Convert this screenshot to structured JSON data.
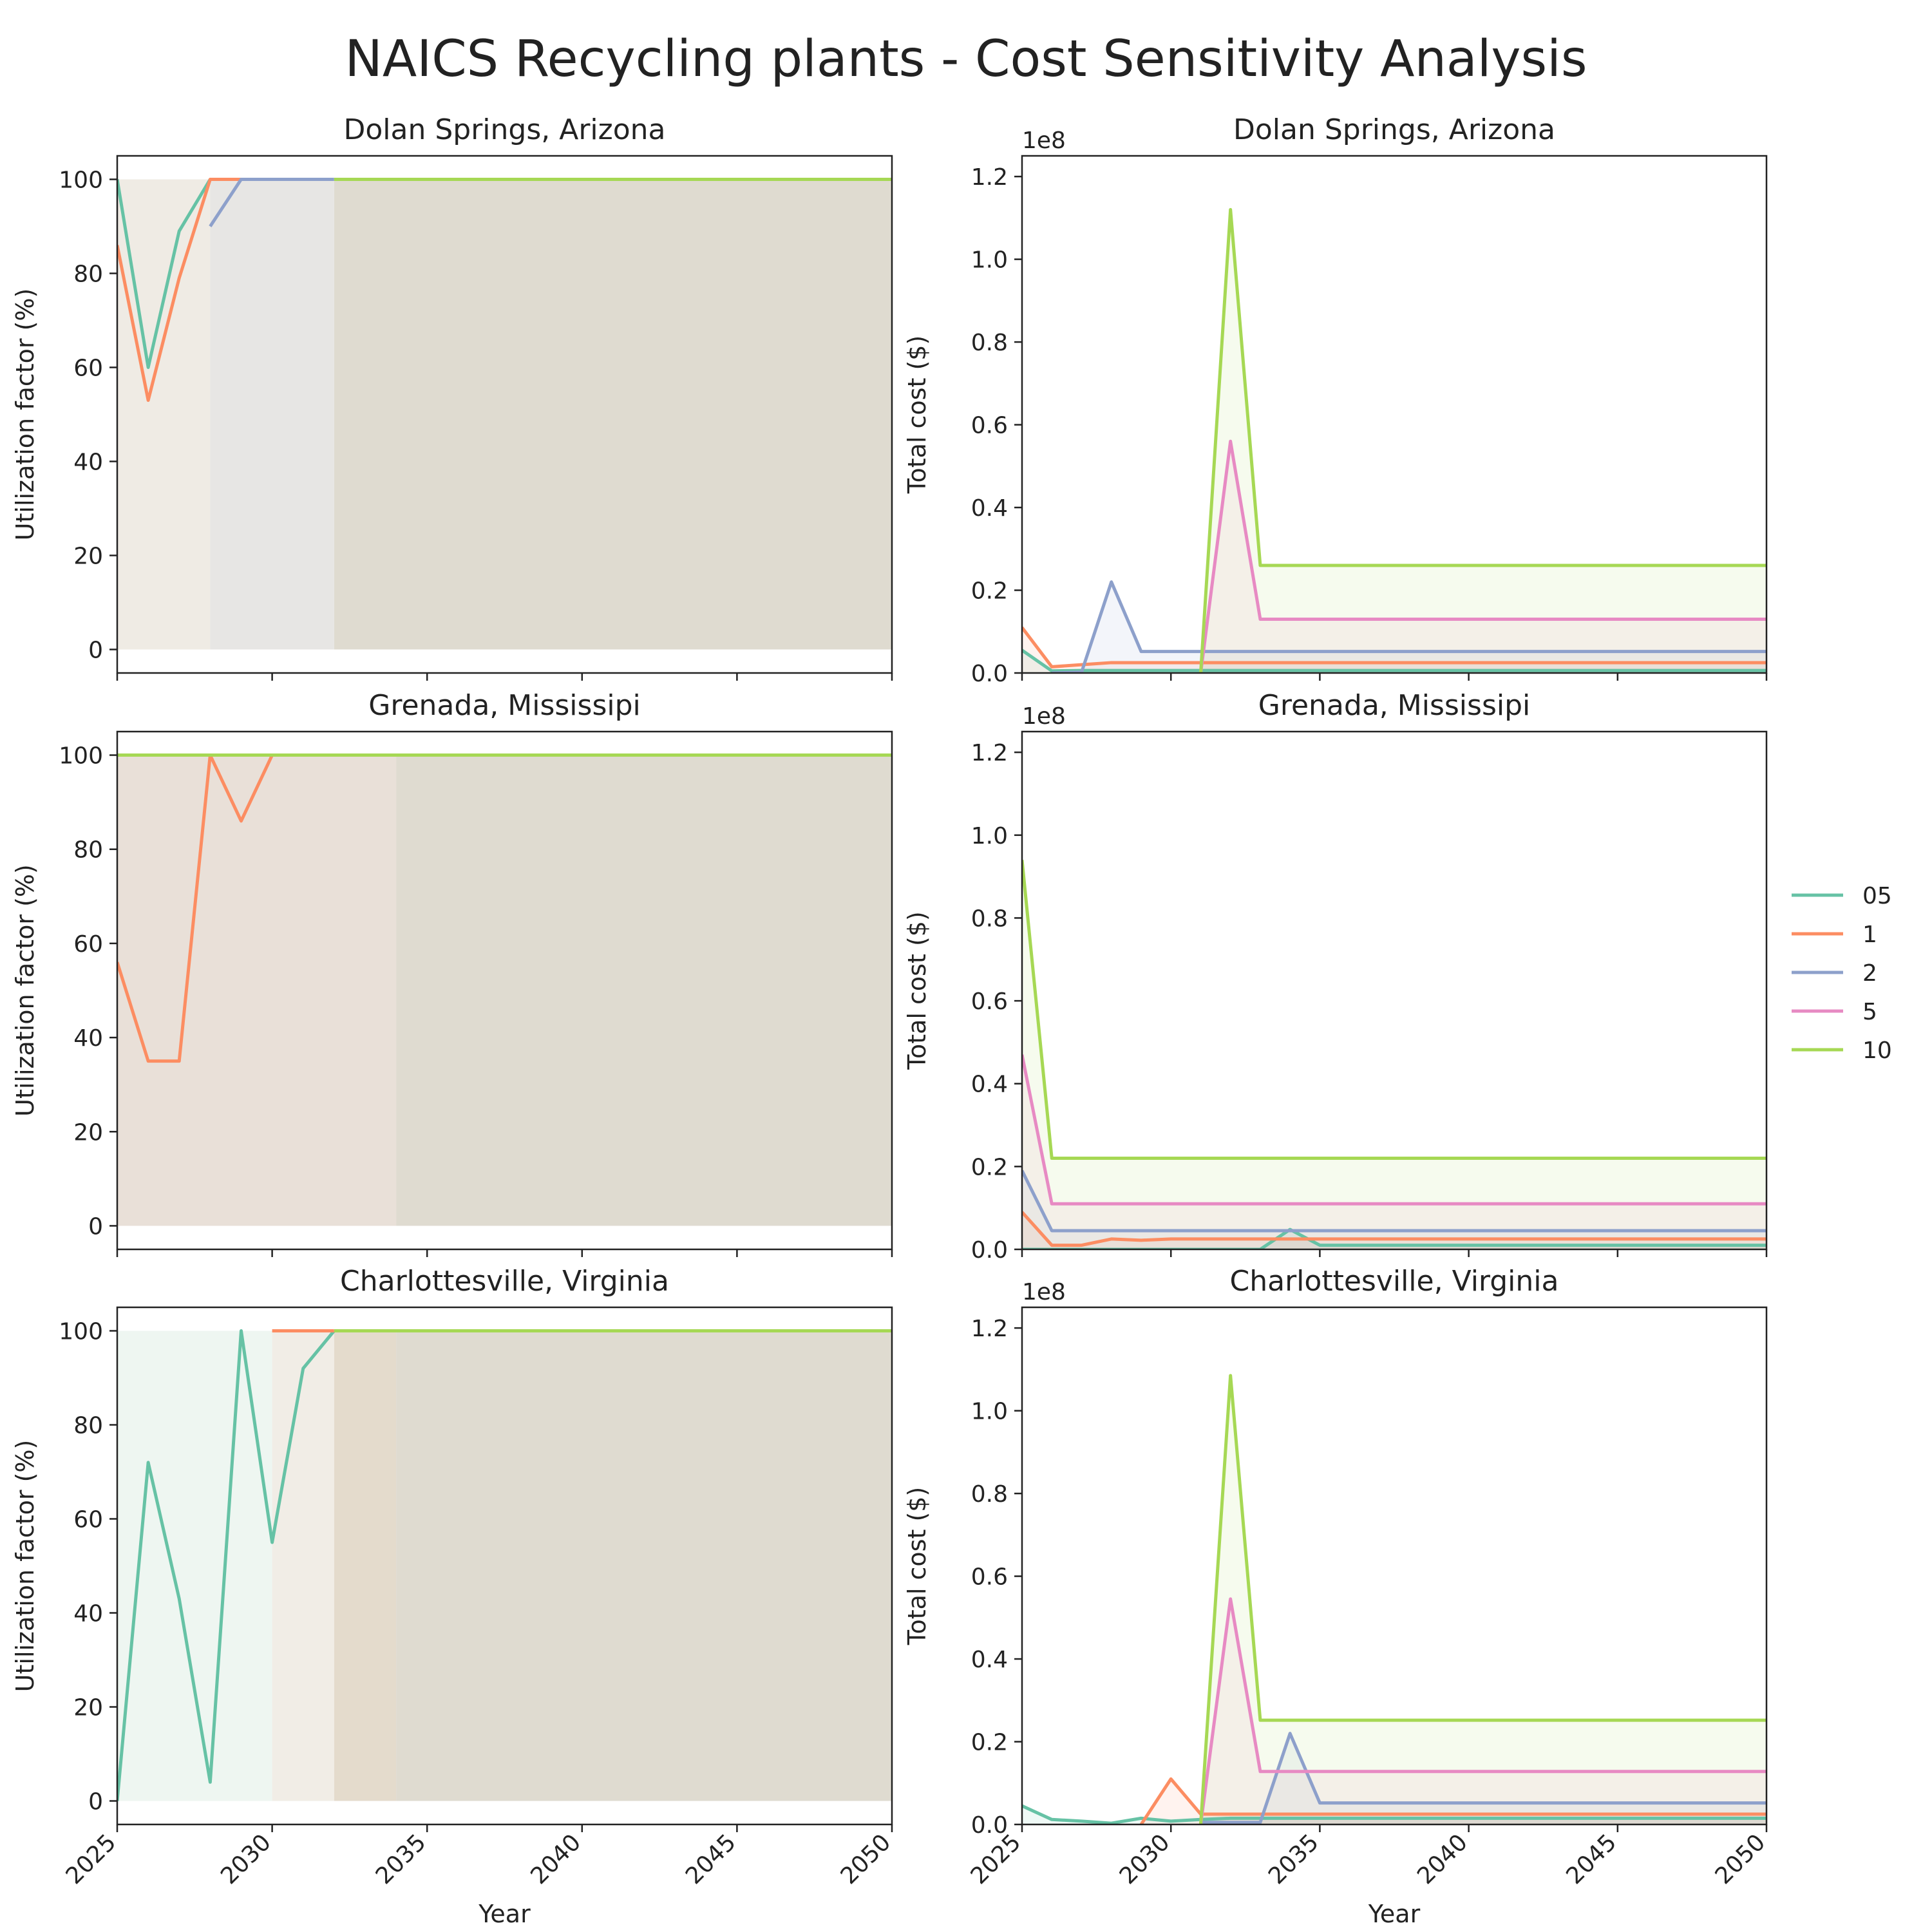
{
  "figure": {
    "title": "NAICS Recycling plants - Cost Sensitivity Analysis",
    "xlabel": "Year",
    "ylabel_left": "Utilization factor (%)",
    "ylabel_right": "Total cost ($)",
    "offset_label": "1e8"
  },
  "legend": {
    "placement": "right-center",
    "entries": [
      {
        "label": "05",
        "color": "#66c2a5"
      },
      {
        "label": "1",
        "color": "#fc8d62"
      },
      {
        "label": "2",
        "color": "#8da0cb"
      },
      {
        "label": "5",
        "color": "#e78ac3"
      },
      {
        "label": "10",
        "color": "#a6d854"
      }
    ]
  },
  "chart_data": [
    {
      "type": "area",
      "title": "Dolan Springs, Arizona",
      "xlim": [
        2025,
        2050
      ],
      "ylim": [
        -5,
        105
      ],
      "xticks": [
        2025,
        2030,
        2035,
        2040,
        2045,
        2050
      ],
      "yticks": [
        0,
        20,
        40,
        60,
        80,
        100
      ],
      "ytick_labels": [
        "0",
        "20",
        "40",
        "60",
        "80",
        "100"
      ],
      "series": [
        {
          "name": "05",
          "color": "#66c2a5",
          "x": [
            2025,
            2026,
            2027,
            2028
          ],
          "y": [
            100,
            60,
            89,
            100
          ]
        },
        {
          "name": "1",
          "color": "#fc8d62",
          "x": [
            2025,
            2026,
            2027,
            2028,
            2029
          ],
          "y": [
            86,
            53,
            79,
            100,
            100
          ]
        },
        {
          "name": "2",
          "color": "#8da0cb",
          "x": [
            2028,
            2029,
            2030,
            2031,
            2032
          ],
          "y": [
            90,
            100,
            100,
            100,
            100
          ]
        },
        {
          "name": "10",
          "color": "#a6d854",
          "x": [
            2032,
            2050
          ],
          "y": [
            100,
            100
          ]
        }
      ],
      "shaded_regions": [
        {
          "x": [
            2025,
            2028
          ],
          "color": "#efebe4"
        },
        {
          "x": [
            2028,
            2032
          ],
          "color": "#e7e6e4"
        },
        {
          "x": [
            2032,
            2050
          ],
          "color": "#dfdbd0"
        }
      ]
    },
    {
      "type": "area",
      "title": "Dolan Springs, Arizona",
      "xlim": [
        2025,
        2050
      ],
      "ylim": [
        0,
        1.25
      ],
      "yscale_factor": 100000000,
      "xticks": [
        2025,
        2030,
        2035,
        2040,
        2045,
        2050
      ],
      "yticks": [
        0,
        0.2,
        0.4,
        0.6,
        0.8,
        1.0,
        1.2
      ],
      "ytick_labels": [
        "0.0",
        "0.2",
        "0.4",
        "0.6",
        "0.8",
        "1.0",
        "1.2"
      ],
      "series": [
        {
          "name": "05",
          "color": "#66c2a5",
          "x": [
            2025,
            2026,
            2027,
            2028,
            2029,
            2030,
            2031,
            2032,
            2033,
            2034,
            2035,
            2040,
            2045,
            2050
          ],
          "y": [
            0.055,
            0.005,
            0.006,
            0.006,
            0.006,
            0.006,
            0.006,
            0.006,
            0.006,
            0.006,
            0.006,
            0.006,
            0.006,
            0.006
          ]
        },
        {
          "name": "1",
          "color": "#fc8d62",
          "x": [
            2025,
            2026,
            2027,
            2028,
            2029,
            2030,
            2031,
            2032,
            2033,
            2035,
            2040,
            2045,
            2050
          ],
          "y": [
            0.11,
            0.015,
            0.02,
            0.025,
            0.025,
            0.025,
            0.025,
            0.025,
            0.025,
            0.025,
            0.025,
            0.025,
            0.025
          ]
        },
        {
          "name": "2",
          "color": "#8da0cb",
          "x": [
            2026,
            2027,
            2028,
            2029,
            2030,
            2031,
            2032,
            2033,
            2035,
            2040,
            2045,
            2050
          ],
          "y": [
            0.0,
            0.002,
            0.22,
            0.052,
            0.052,
            0.052,
            0.052,
            0.052,
            0.052,
            0.052,
            0.052,
            0.052
          ]
        },
        {
          "name": "5",
          "color": "#e78ac3",
          "x": [
            2031,
            2032,
            2033,
            2035,
            2040,
            2045,
            2050
          ],
          "y": [
            0.0,
            0.56,
            0.13,
            0.13,
            0.13,
            0.13,
            0.13
          ]
        },
        {
          "name": "10",
          "color": "#a6d854",
          "x": [
            2031,
            2032,
            2033,
            2035,
            2040,
            2045,
            2050
          ],
          "y": [
            0.0,
            1.12,
            0.26,
            0.26,
            0.26,
            0.26,
            0.26
          ]
        }
      ]
    },
    {
      "type": "area",
      "title": "Grenada, Mississipi",
      "xlim": [
        2025,
        2050
      ],
      "ylim": [
        -5,
        105
      ],
      "xticks": [
        2025,
        2030,
        2035,
        2040,
        2045,
        2050
      ],
      "yticks": [
        0,
        20,
        40,
        60,
        80,
        100
      ],
      "ytick_labels": [
        "0",
        "20",
        "40",
        "60",
        "80",
        "100"
      ],
      "series": [
        {
          "name": "05",
          "color": "#66c2a5",
          "x": [
            2025,
            2050
          ],
          "y": [
            100,
            100
          ]
        },
        {
          "name": "1",
          "color": "#fc8d62",
          "x": [
            2025,
            2026,
            2027,
            2028,
            2029,
            2030,
            2031,
            2032,
            2033,
            2034
          ],
          "y": [
            56,
            35,
            35,
            100,
            86,
            100,
            100,
            100,
            100,
            100
          ]
        },
        {
          "name": "10",
          "color": "#a6d854",
          "x": [
            2025,
            2050
          ],
          "y": [
            100,
            100
          ]
        }
      ],
      "shaded_regions": [
        {
          "x": [
            2025,
            2034
          ],
          "color": "#e9e0d8"
        },
        {
          "x": [
            2034,
            2050
          ],
          "color": "#dfdbd0"
        }
      ]
    },
    {
      "type": "area",
      "title": "Grenada, Mississipi",
      "xlim": [
        2025,
        2050
      ],
      "ylim": [
        0,
        1.25
      ],
      "yscale_factor": 100000000,
      "xticks": [
        2025,
        2030,
        2035,
        2040,
        2045,
        2050
      ],
      "yticks": [
        0,
        0.2,
        0.4,
        0.6,
        0.8,
        1.0,
        1.2
      ],
      "ytick_labels": [
        "0.0",
        "0.2",
        "0.4",
        "0.6",
        "0.8",
        "1.0",
        "1.2"
      ],
      "series": [
        {
          "name": "05",
          "color": "#66c2a5",
          "x": [
            2025,
            2026,
            2030,
            2033,
            2034,
            2035,
            2040,
            2045,
            2050
          ],
          "y": [
            0.0,
            0.0,
            0.0,
            0.0,
            0.048,
            0.01,
            0.01,
            0.01,
            0.01
          ]
        },
        {
          "name": "1",
          "color": "#fc8d62",
          "x": [
            2025,
            2026,
            2027,
            2028,
            2029,
            2030,
            2031,
            2032,
            2033,
            2034,
            2035,
            2040,
            2045,
            2050
          ],
          "y": [
            0.09,
            0.01,
            0.01,
            0.025,
            0.022,
            0.025,
            0.025,
            0.025,
            0.025,
            0.025,
            0.025,
            0.025,
            0.025,
            0.025
          ]
        },
        {
          "name": "2",
          "color": "#8da0cb",
          "x": [
            2025,
            2026,
            2030,
            2035,
            2040,
            2045,
            2050
          ],
          "y": [
            0.19,
            0.045,
            0.045,
            0.045,
            0.045,
            0.045,
            0.045
          ]
        },
        {
          "name": "5",
          "color": "#e78ac3",
          "x": [
            2025,
            2026,
            2030,
            2035,
            2040,
            2045,
            2050
          ],
          "y": [
            0.47,
            0.11,
            0.11,
            0.11,
            0.11,
            0.11,
            0.11
          ]
        },
        {
          "name": "10",
          "color": "#a6d854",
          "x": [
            2025,
            2026,
            2030,
            2035,
            2040,
            2045,
            2050
          ],
          "y": [
            0.94,
            0.22,
            0.22,
            0.22,
            0.22,
            0.22,
            0.22
          ]
        }
      ]
    },
    {
      "type": "area",
      "title": "Charlottesville, Virginia",
      "xlim": [
        2025,
        2050
      ],
      "ylim": [
        -5,
        105
      ],
      "xticks": [
        2025,
        2030,
        2035,
        2040,
        2045,
        2050
      ],
      "yticks": [
        0,
        20,
        40,
        60,
        80,
        100
      ],
      "ytick_labels": [
        "0",
        "20",
        "40",
        "60",
        "80",
        "100"
      ],
      "series": [
        {
          "name": "05",
          "color": "#66c2a5",
          "x": [
            2025,
            2026,
            2027,
            2028,
            2029,
            2030,
            2031,
            2032
          ],
          "y": [
            0,
            72,
            43,
            4,
            100,
            55,
            92,
            100
          ]
        },
        {
          "name": "1",
          "color": "#fc8d62",
          "x": [
            2030,
            2031,
            2032
          ],
          "y": [
            100,
            100,
            100
          ]
        },
        {
          "name": "10",
          "color": "#a6d854",
          "x": [
            2032,
            2050
          ],
          "y": [
            100,
            100
          ]
        }
      ],
      "shaded_regions": [
        {
          "x": [
            2025,
            2030
          ],
          "color": "#eef6f1"
        },
        {
          "x": [
            2030,
            2032
          ],
          "color": "#f1ede6"
        },
        {
          "x": [
            2032,
            2034
          ],
          "color": "#e4dbcc"
        },
        {
          "x": [
            2034,
            2050
          ],
          "color": "#dfdbd0"
        }
      ]
    },
    {
      "type": "area",
      "title": "Charlottesville, Virginia",
      "xlim": [
        2025,
        2050
      ],
      "ylim": [
        0,
        1.25
      ],
      "yscale_factor": 100000000,
      "xticks": [
        2025,
        2030,
        2035,
        2040,
        2045,
        2050
      ],
      "yticks": [
        0,
        0.2,
        0.4,
        0.6,
        0.8,
        1.0,
        1.2
      ],
      "ytick_labels": [
        "0.0",
        "0.2",
        "0.4",
        "0.6",
        "0.8",
        "1.0",
        "1.2"
      ],
      "series": [
        {
          "name": "05",
          "color": "#66c2a5",
          "x": [
            2025,
            2026,
            2027,
            2028,
            2029,
            2030,
            2031,
            2032,
            2033,
            2035,
            2040,
            2045,
            2050
          ],
          "y": [
            0.045,
            0.012,
            0.008,
            0.003,
            0.015,
            0.008,
            0.012,
            0.015,
            0.015,
            0.015,
            0.015,
            0.015,
            0.015
          ]
        },
        {
          "name": "1",
          "color": "#fc8d62",
          "x": [
            2029,
            2030,
            2031,
            2032,
            2033,
            2035,
            2040,
            2045,
            2050
          ],
          "y": [
            0.0,
            0.11,
            0.025,
            0.025,
            0.025,
            0.025,
            0.025,
            0.025,
            0.025
          ]
        },
        {
          "name": "2",
          "color": "#8da0cb",
          "x": [
            2031,
            2032,
            2033,
            2034,
            2035,
            2040,
            2045,
            2050
          ],
          "y": [
            0.005,
            0.005,
            0.005,
            0.22,
            0.052,
            0.052,
            0.052,
            0.052
          ]
        },
        {
          "name": "5",
          "color": "#e78ac3",
          "x": [
            2031,
            2032,
            2033,
            2035,
            2040,
            2045,
            2050
          ],
          "y": [
            0.0,
            0.545,
            0.128,
            0.128,
            0.128,
            0.128,
            0.128
          ]
        },
        {
          "name": "10",
          "color": "#a6d854",
          "x": [
            2031,
            2032,
            2033,
            2035,
            2040,
            2045,
            2050
          ],
          "y": [
            0.0,
            1.085,
            0.252,
            0.252,
            0.252,
            0.252,
            0.252
          ]
        }
      ]
    }
  ]
}
